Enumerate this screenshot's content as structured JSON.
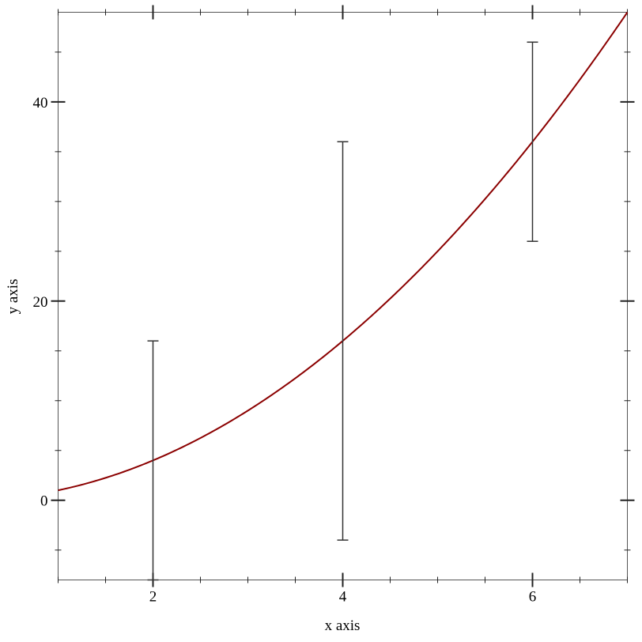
{
  "chart_data": {
    "type": "line",
    "title": "",
    "xlabel": "x axis",
    "ylabel": "y axis",
    "xlim": [
      1,
      7
    ],
    "ylim": [
      -8,
      49
    ],
    "grid": false,
    "x_ticks_major": [
      2,
      4,
      6
    ],
    "x_tick_labels": [
      "2",
      "4",
      "6"
    ],
    "y_ticks_major": [
      0,
      20,
      40
    ],
    "y_tick_labels": [
      "0",
      "20",
      "40"
    ],
    "x_ticks_minor": [
      1,
      1.5,
      2.5,
      3,
      3.5,
      4.5,
      5,
      5.5,
      6.5,
      7
    ],
    "y_ticks_minor": [
      -5,
      5,
      10,
      15,
      25,
      30,
      35,
      45
    ],
    "series": [
      {
        "type": "function",
        "expression": "x^2",
        "x_range": [
          1,
          7
        ],
        "color": "#8b0000"
      },
      {
        "type": "error-bars",
        "color": "#333333",
        "points": [
          {
            "x": 2,
            "y": 4,
            "error": 12
          },
          {
            "x": 4,
            "y": 16,
            "error": 20
          },
          {
            "x": 6,
            "y": 36,
            "error": 10
          }
        ]
      }
    ]
  }
}
